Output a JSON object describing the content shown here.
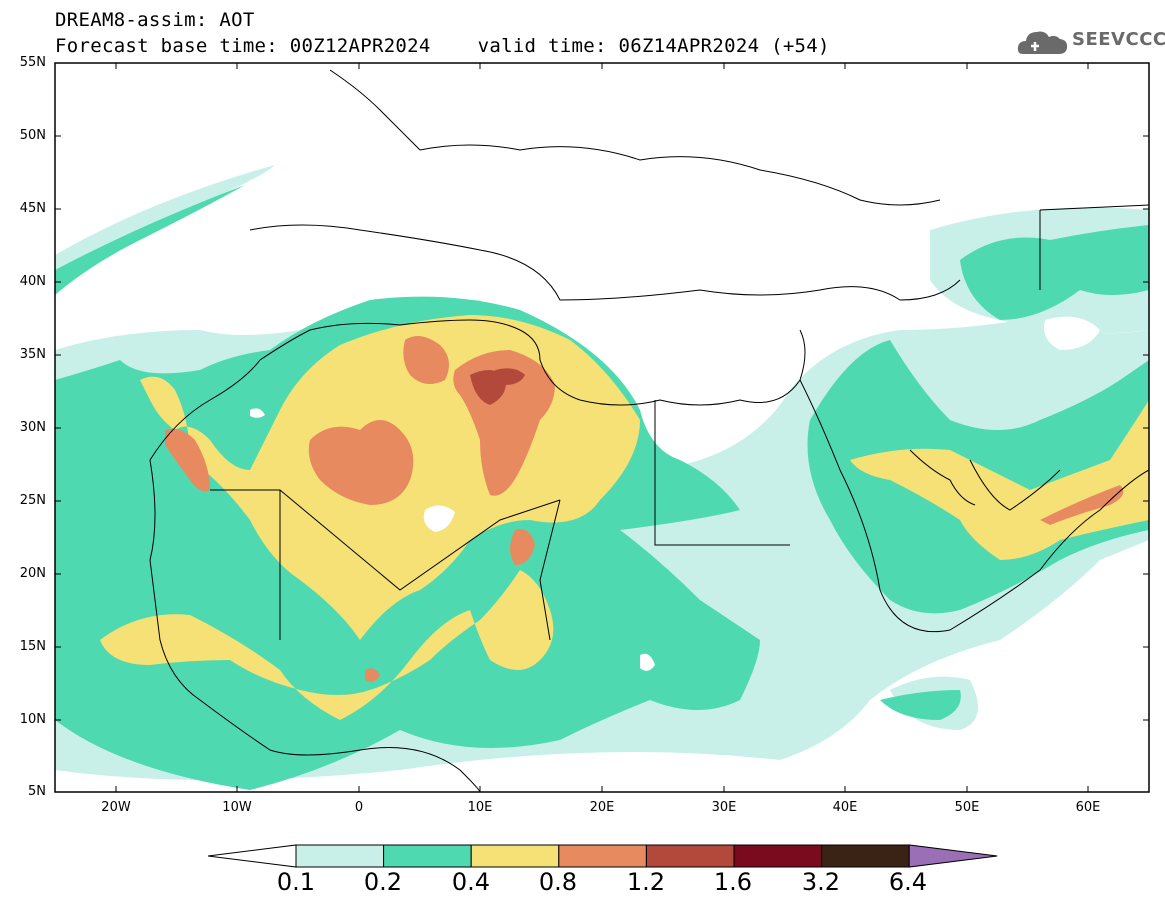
{
  "header": {
    "line1": "DREAM8-assim: AOT",
    "line2": "Forecast base time: 00Z12APR2024    valid time: 06Z14APR2024 (+54)"
  },
  "logo": {
    "text": "SEEVCCC",
    "icon": "cloud-icon",
    "color": "#6a6a6a"
  },
  "map": {
    "lat_labels": [
      "55N",
      "50N",
      "45N",
      "40N",
      "35N",
      "30N",
      "25N",
      "20N",
      "15N",
      "10N",
      "5N"
    ],
    "lon_labels": [
      "20W",
      "10W",
      "0",
      "10E",
      "20E",
      "30E",
      "40E",
      "50E",
      "60E"
    ],
    "extent": {
      "lon_min": -25,
      "lon_max": 65,
      "lat_min": 5,
      "lat_max": 55
    }
  },
  "legend": {
    "labels": [
      "0.1",
      "0.2",
      "0.4",
      "0.8",
      "1.2",
      "1.6",
      "3.2",
      "6.4"
    ],
    "colors": [
      "#ffffff",
      "#c8f0e9",
      "#4fd9b0",
      "#f6e176",
      "#e88a60",
      "#b2493a",
      "#7a0a1e",
      "#3a2314",
      "#9b6fb6"
    ]
  }
}
